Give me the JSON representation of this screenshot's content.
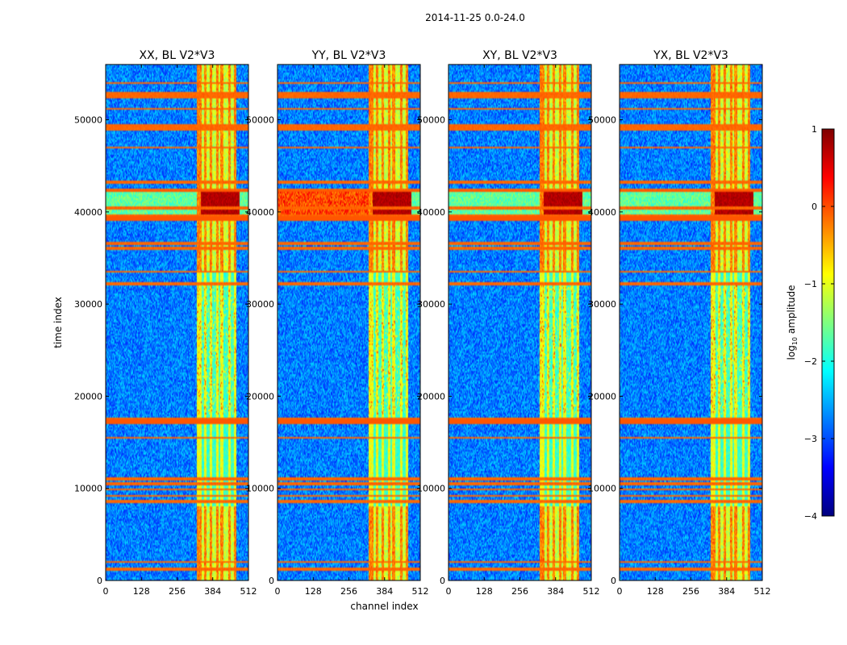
{
  "figure": {
    "suptitle": "2014-11-25 0.0-24.0"
  },
  "chart_data": [
    {
      "type": "heatmap",
      "title": "XX, BL V2*V3",
      "xlabel": "",
      "ylabel": "time index",
      "xlim": [
        0,
        512
      ],
      "ylim": [
        0,
        56000
      ],
      "xticks": [
        0,
        128,
        256,
        384,
        512
      ],
      "yticks": [
        0,
        10000,
        20000,
        30000,
        40000,
        50000
      ]
    },
    {
      "type": "heatmap",
      "title": "YY, BL V2*V3",
      "xlabel": "channel index",
      "ylabel": "",
      "xlim": [
        0,
        512
      ],
      "ylim": [
        0,
        56000
      ],
      "xticks": [
        0,
        128,
        256,
        384,
        512
      ],
      "yticks": [
        0,
        10000,
        20000,
        30000,
        40000,
        50000
      ]
    },
    {
      "type": "heatmap",
      "title": "XY, BL V2*V3",
      "xlabel": "",
      "ylabel": "",
      "xlim": [
        0,
        512
      ],
      "ylim": [
        0,
        56000
      ],
      "xticks": [
        0,
        128,
        256,
        384,
        512
      ],
      "yticks": [
        0,
        10000,
        20000,
        30000,
        40000,
        50000
      ]
    },
    {
      "type": "heatmap",
      "title": "YX, BL V2*V3",
      "xlabel": "",
      "ylabel": "",
      "xlim": [
        0,
        512
      ],
      "ylim": [
        0,
        56000
      ],
      "xticks": [
        0,
        128,
        256,
        384,
        512
      ],
      "yticks": [
        0,
        10000,
        20000,
        30000,
        40000,
        50000
      ]
    }
  ],
  "colorbar": {
    "label": "log10 amplitude",
    "label_main": "log",
    "label_sub": "10",
    "label_rest": " amplitude",
    "range": [
      -4,
      1
    ],
    "ticks": [
      "1",
      "0",
      "−1",
      "−2",
      "−3",
      "−4"
    ],
    "tick_values": [
      1,
      0,
      -1,
      -2,
      -3,
      -4
    ],
    "colormap": "jet",
    "colors": [
      "#00007f",
      "#0000ff",
      "#007fff",
      "#00ffff",
      "#7fff7f",
      "#ffff00",
      "#ff7f00",
      "#ff0000",
      "#7f0000"
    ]
  },
  "features": {
    "rfi_band_channels": [
      [
        326,
        344
      ],
      [
        352,
        362
      ],
      [
        374,
        382
      ],
      [
        396,
        404
      ],
      [
        412,
        422
      ],
      [
        440,
        448
      ],
      [
        460,
        470
      ]
    ],
    "flagged_time_rows": [
      1200,
      2000,
      8600,
      9200,
      9900,
      10500,
      11000,
      15500,
      17200,
      17500,
      32200,
      33500,
      36000,
      36600,
      39200,
      39600,
      40400,
      42300,
      43200,
      47000,
      49000,
      49300,
      51200,
      52500,
      52800,
      54000
    ],
    "burst_time_range": [
      39800,
      42500
    ],
    "burst_channel_range": [
      340,
      480
    ]
  }
}
